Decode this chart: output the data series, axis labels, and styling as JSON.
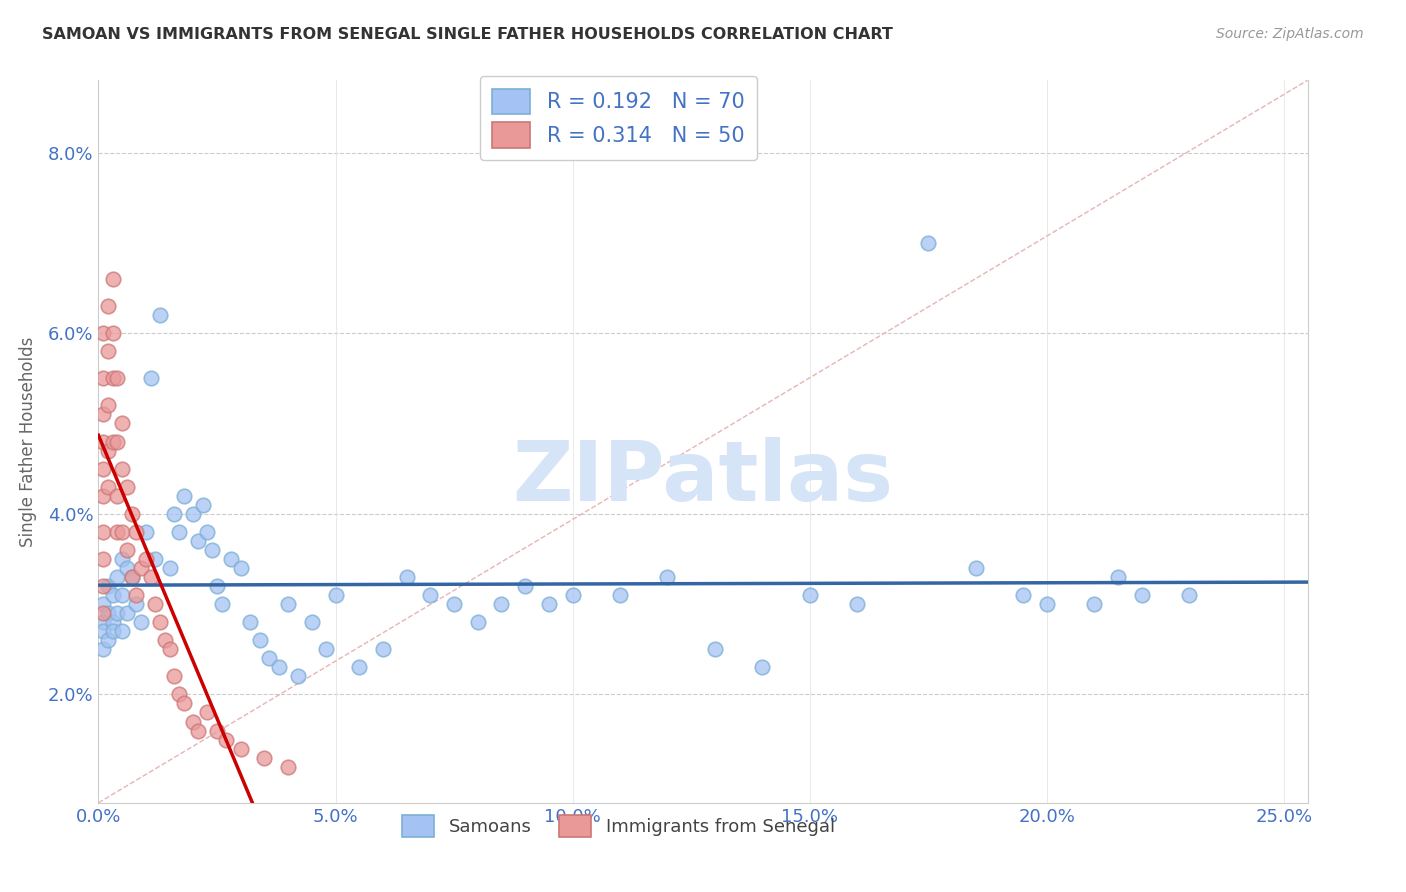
{
  "title": "SAMOAN VS IMMIGRANTS FROM SENEGAL SINGLE FATHER HOUSEHOLDS CORRELATION CHART",
  "source": "Source: ZipAtlas.com",
  "ylabel_label": "Single Father Households",
  "legend_labels": [
    "Samoans",
    "Immigrants from Senegal"
  ],
  "R_samoan": 0.192,
  "N_samoan": 70,
  "R_senegal": 0.314,
  "N_senegal": 50,
  "blue_color": "#a4c2f4",
  "pink_color": "#ea9999",
  "blue_line_color": "#3465a4",
  "pink_line_color": "#cc0000",
  "diagonal_color": "#e0b0b0",
  "watermark_color": "#d6e4f7",
  "xlim": [
    0.0,
    0.255
  ],
  "ylim": [
    0.008,
    0.088
  ],
  "xticks": [
    0.0,
    0.05,
    0.1,
    0.15,
    0.2,
    0.25
  ],
  "yticks": [
    0.02,
    0.04,
    0.06,
    0.08
  ],
  "xtick_labels": [
    "0.0%",
    "5.0%",
    "10.0%",
    "15.0%",
    "20.0%",
    "25.0%"
  ],
  "ytick_labels": [
    "2.0%",
    "4.0%",
    "6.0%",
    "8.0%"
  ],
  "samoan_x": [
    0.001,
    0.001,
    0.001,
    0.001,
    0.002,
    0.002,
    0.002,
    0.003,
    0.003,
    0.003,
    0.004,
    0.004,
    0.005,
    0.005,
    0.005,
    0.006,
    0.006,
    0.007,
    0.008,
    0.009,
    0.01,
    0.011,
    0.012,
    0.013,
    0.015,
    0.016,
    0.017,
    0.018,
    0.02,
    0.021,
    0.022,
    0.023,
    0.024,
    0.025,
    0.026,
    0.028,
    0.03,
    0.032,
    0.034,
    0.036,
    0.038,
    0.04,
    0.042,
    0.045,
    0.048,
    0.05,
    0.055,
    0.06,
    0.065,
    0.07,
    0.075,
    0.08,
    0.085,
    0.09,
    0.095,
    0.1,
    0.11,
    0.12,
    0.13,
    0.14,
    0.15,
    0.16,
    0.175,
    0.185,
    0.195,
    0.2,
    0.21,
    0.215,
    0.22,
    0.23
  ],
  "samoan_y": [
    0.03,
    0.028,
    0.027,
    0.025,
    0.032,
    0.029,
    0.026,
    0.031,
    0.028,
    0.027,
    0.033,
    0.029,
    0.035,
    0.031,
    0.027,
    0.034,
    0.029,
    0.033,
    0.03,
    0.028,
    0.038,
    0.055,
    0.035,
    0.062,
    0.034,
    0.04,
    0.038,
    0.042,
    0.04,
    0.037,
    0.041,
    0.038,
    0.036,
    0.032,
    0.03,
    0.035,
    0.034,
    0.028,
    0.026,
    0.024,
    0.023,
    0.03,
    0.022,
    0.028,
    0.025,
    0.031,
    0.023,
    0.025,
    0.033,
    0.031,
    0.03,
    0.028,
    0.03,
    0.032,
    0.03,
    0.031,
    0.031,
    0.033,
    0.025,
    0.023,
    0.031,
    0.03,
    0.07,
    0.034,
    0.031,
    0.03,
    0.03,
    0.033,
    0.031,
    0.031
  ],
  "senegal_x": [
    0.001,
    0.001,
    0.001,
    0.001,
    0.001,
    0.001,
    0.001,
    0.001,
    0.001,
    0.001,
    0.002,
    0.002,
    0.002,
    0.002,
    0.002,
    0.003,
    0.003,
    0.003,
    0.003,
    0.004,
    0.004,
    0.004,
    0.004,
    0.005,
    0.005,
    0.005,
    0.006,
    0.006,
    0.007,
    0.007,
    0.008,
    0.008,
    0.009,
    0.01,
    0.011,
    0.012,
    0.013,
    0.014,
    0.015,
    0.016,
    0.017,
    0.018,
    0.02,
    0.021,
    0.023,
    0.025,
    0.027,
    0.03,
    0.035,
    0.04
  ],
  "senegal_y": [
    0.06,
    0.055,
    0.051,
    0.048,
    0.045,
    0.042,
    0.038,
    0.035,
    0.032,
    0.029,
    0.063,
    0.058,
    0.052,
    0.047,
    0.043,
    0.066,
    0.06,
    0.055,
    0.048,
    0.055,
    0.048,
    0.042,
    0.038,
    0.05,
    0.045,
    0.038,
    0.043,
    0.036,
    0.04,
    0.033,
    0.038,
    0.031,
    0.034,
    0.035,
    0.033,
    0.03,
    0.028,
    0.026,
    0.025,
    0.022,
    0.02,
    0.019,
    0.017,
    0.016,
    0.018,
    0.016,
    0.015,
    0.014,
    0.013,
    0.012
  ]
}
